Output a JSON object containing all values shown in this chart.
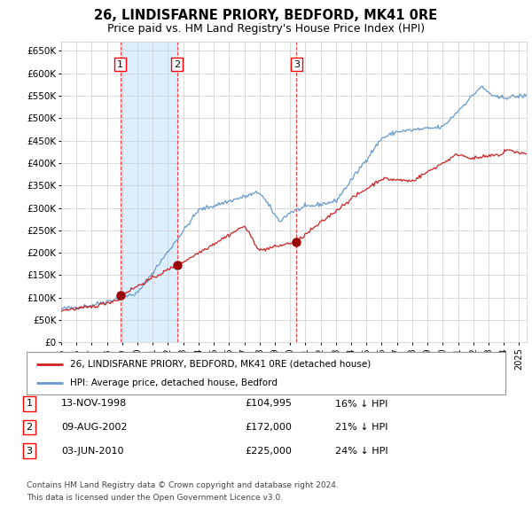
{
  "title": "26, LINDISFARNE PRIORY, BEDFORD, MK41 0RE",
  "subtitle": "Price paid vs. HM Land Registry's House Price Index (HPI)",
  "title_fontsize": 10.5,
  "subtitle_fontsize": 9,
  "ylim": [
    0,
    670000
  ],
  "yticks": [
    0,
    50000,
    100000,
    150000,
    200000,
    250000,
    300000,
    350000,
    400000,
    450000,
    500000,
    550000,
    600000,
    650000
  ],
  "ytick_labels": [
    "£0",
    "£50K",
    "£100K",
    "£150K",
    "£200K",
    "£250K",
    "£300K",
    "£350K",
    "£400K",
    "£450K",
    "£500K",
    "£550K",
    "£600K",
    "£650K"
  ],
  "hpi_color": "#6699cc",
  "sale_color": "#cc2222",
  "dot_color": "#990000",
  "shade_color": "#ddeeff",
  "grid_color": "#cccccc",
  "bg_color": "#ffffff",
  "sale1_date_num": 1998.87,
  "sale1_price": 104995,
  "sale2_date_num": 2002.6,
  "sale2_price": 172000,
  "sale3_date_num": 2010.42,
  "sale3_price": 225000,
  "legend_label_red": "26, LINDISFARNE PRIORY, BEDFORD, MK41 0RE (detached house)",
  "legend_label_blue": "HPI: Average price, detached house, Bedford",
  "table_rows": [
    {
      "num": "1",
      "date": "13-NOV-1998",
      "price": "£104,995",
      "hpi": "16% ↓ HPI"
    },
    {
      "num": "2",
      "date": "09-AUG-2002",
      "price": "£172,000",
      "hpi": "21% ↓ HPI"
    },
    {
      "num": "3",
      "date": "03-JUN-2010",
      "price": "£225,000",
      "hpi": "24% ↓ HPI"
    }
  ],
  "footer1": "Contains HM Land Registry data © Crown copyright and database right 2024.",
  "footer2": "This data is licensed under the Open Government Licence v3.0.",
  "xlim_start": 1995.0,
  "xlim_end": 2025.5
}
